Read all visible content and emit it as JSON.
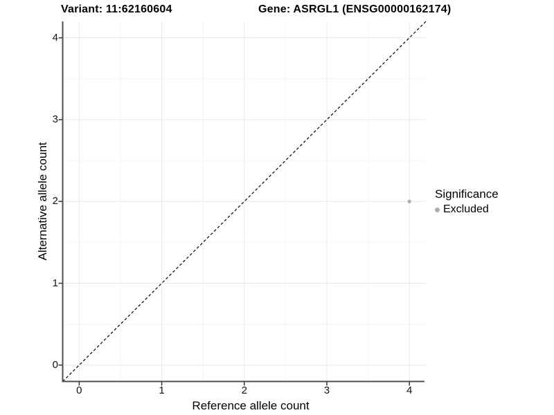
{
  "header": {
    "variant_label": "Variant: 11:62160604",
    "gene_label": "Gene: ASRGL1 (ENSG00000162174)"
  },
  "colors": {
    "background": "#ffffff",
    "grid_major": "#e8e8e8",
    "grid_minor": "#f4f4f4",
    "axis_line": "#4d4d4d",
    "tick_mark": "#333333",
    "identity_line": "#000000",
    "point": "#adadad"
  },
  "chart_data": {
    "type": "scatter",
    "title": "Variant: 11:62160604    Gene: ASRGL1 (ENSG00000162174)",
    "xlabel": "Reference allele count",
    "ylabel": "Alternative allele count",
    "xlim": [
      -0.2,
      4.2
    ],
    "ylim": [
      -0.2,
      4.2
    ],
    "xticks": [
      0,
      1,
      2,
      3,
      4
    ],
    "yticks": [
      0,
      1,
      2,
      3,
      4
    ],
    "xticks_minor": [
      0.5,
      1.5,
      2.5,
      3.5
    ],
    "yticks_minor": [
      0.5,
      1.5,
      2.5,
      3.5
    ],
    "grid": "major and minor gridlines, white panel background",
    "legend_title": "Significance",
    "legend_position": "right",
    "identity_line": {
      "type": "abline",
      "slope": 1,
      "intercept": 0,
      "style": "dashed",
      "color": "#000000"
    },
    "series": [
      {
        "name": "Excluded",
        "color": "#adadad",
        "points": [
          {
            "x": 4,
            "y": 2
          }
        ]
      }
    ]
  }
}
